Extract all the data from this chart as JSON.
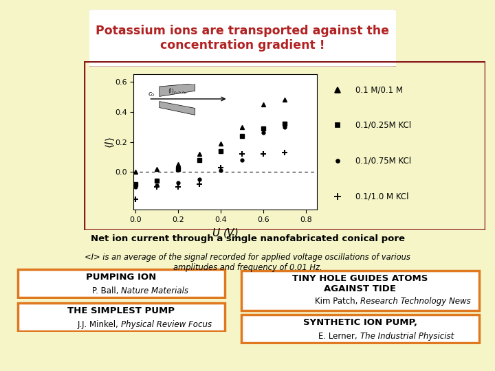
{
  "background_color": "#f5f5c8",
  "title_text": "Potassium ions are transported against the\nconcentration gradient !",
  "title_color": "#b22222",
  "plot_border_color": "#8b1a1a",
  "legend_labels": [
    "0.1 M/0.1 M",
    "0.1/0.25M KCl",
    "0.1/0.75M KCl",
    "0.1/1.0 M KCl"
  ],
  "series1_x": [
    0.0,
    0.1,
    0.2,
    0.3,
    0.4,
    0.5,
    0.6,
    0.7
  ],
  "series1_y": [
    0.0,
    0.02,
    0.05,
    0.12,
    0.19,
    0.3,
    0.45,
    0.48
  ],
  "series2_x": [
    0.0,
    0.1,
    0.2,
    0.3,
    0.4,
    0.5,
    0.6,
    0.7
  ],
  "series2_y": [
    -0.08,
    -0.06,
    0.02,
    0.08,
    0.14,
    0.24,
    0.29,
    0.32
  ],
  "series3_x": [
    0.0,
    0.1,
    0.2,
    0.3,
    0.4,
    0.5,
    0.6,
    0.7
  ],
  "series3_y": [
    -0.1,
    -0.09,
    -0.07,
    -0.05,
    0.01,
    0.08,
    0.26,
    0.3
  ],
  "series4_x": [
    0.0,
    0.1,
    0.2,
    0.3,
    0.4,
    0.5,
    0.6,
    0.7
  ],
  "series4_y": [
    -0.18,
    -0.1,
    -0.1,
    -0.08,
    0.03,
    0.12,
    0.12,
    0.13
  ],
  "net_ion_text": "Net ion current through a single nanofabricated conical pore",
  "avg_text": "<I> is an average of the signal recorded for applied voltage oscillations of various\namplitudes and frequency of 0.01 Hz.",
  "box1_title": "PUMPING ION",
  "box1_sub": "P. Ball, ",
  "box1_sub_italic": "Nature Materials",
  "box2_title": "THE SIMPLEST PUMP",
  "box2_sub": "J.J. Minkel, ",
  "box2_sub_italic": "Physical Review Focus",
  "box3_title": "TINY HOLE GUIDES ATOMS\nAGAINST TIDE",
  "box3_sub": "Kim Patch, ",
  "box3_sub_italic": "Research Technology News",
  "box4_title": "SYNTHETIC ION PUMP,",
  "box4_sub": "E. Lerner, ",
  "box4_sub_italic": "The Industrial Physicist",
  "box_border_color": "#e07820",
  "box_bg_color": "#ffffff"
}
